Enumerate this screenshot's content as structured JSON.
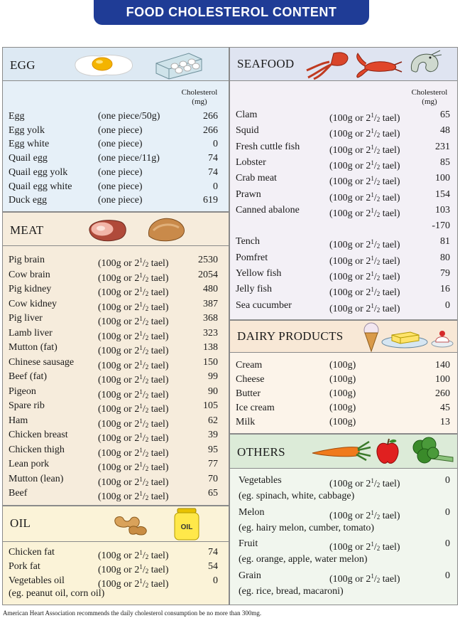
{
  "title": "FOOD CHOLESTEROL CONTENT",
  "column_header": {
    "line1": "Cholesterol",
    "line2": "(mg)"
  },
  "amount_100g": "(100g or 2",
  "amount_100g_frac": "1",
  "amount_100g_den": "2",
  "amount_100g_tail": " tael)",
  "egg": {
    "title": "EGG",
    "icons": [
      "fried-egg-icon",
      "egg-carton-icon"
    ],
    "items": [
      {
        "name": "Egg",
        "amount": "(one piece/50g)",
        "value": "266"
      },
      {
        "name": "Egg yolk",
        "amount": "(one piece)",
        "value": "266"
      },
      {
        "name": "Egg white",
        "amount": "(one piece)",
        "value": "0"
      },
      {
        "name": "Quail egg",
        "amount": "(one piece/11g)",
        "value": "74"
      },
      {
        "name": "Quail egg yolk",
        "amount": "(one piece)",
        "value": "74"
      },
      {
        "name": "Quail egg white",
        "amount": "(one piece)",
        "value": "0"
      },
      {
        "name": "Duck egg",
        "amount": "(one piece)",
        "value": "619"
      }
    ]
  },
  "meat": {
    "title": "MEAT",
    "icons": [
      "ham-icon",
      "chicken-leg-icon"
    ],
    "items": [
      {
        "name": "Pig brain",
        "value": "2530"
      },
      {
        "name": "Cow brain",
        "value": "2054"
      },
      {
        "name": "Pig kidney",
        "value": "480"
      },
      {
        "name": "Cow kidney",
        "value": "387"
      },
      {
        "name": "Pig liver",
        "value": "368"
      },
      {
        "name": "Lamb liver",
        "value": "323"
      },
      {
        "name": "Mutton (fat)",
        "value": "138"
      },
      {
        "name": "Chinese sausage",
        "value": "150"
      },
      {
        "name": "Beef (fat)",
        "value": "99"
      },
      {
        "name": "Pigeon",
        "value": "90"
      },
      {
        "name": "Spare rib",
        "value": "105"
      },
      {
        "name": "Ham",
        "value": "62"
      },
      {
        "name": "Chicken breast",
        "value": "39"
      },
      {
        "name": "Chicken thigh",
        "value": "95"
      },
      {
        "name": "Lean pork",
        "value": "77"
      },
      {
        "name": "Mutton (lean)",
        "value": "70"
      },
      {
        "name": "Beef",
        "value": "65"
      }
    ]
  },
  "oil": {
    "title": "OIL",
    "icons": [
      "peanuts-icon",
      "oil-bottle-icon"
    ],
    "jar_label": "OIL",
    "items": [
      {
        "name": "Chicken fat",
        "value": "74"
      },
      {
        "name": "Pork fat",
        "value": "54"
      },
      {
        "name": "Vegetables oil",
        "value": "0"
      }
    ],
    "note": "(eg. peanut oil, corn oil)"
  },
  "seafood": {
    "title": "SEAFOOD",
    "icons": [
      "squid-icon",
      "lobster-icon",
      "shrimp-icon"
    ],
    "items": [
      {
        "name": "Clam",
        "value": "65"
      },
      {
        "name": "Squid",
        "value": "48"
      },
      {
        "name": "Fresh cuttle fish",
        "value": "231"
      },
      {
        "name": "Lobster",
        "value": "85"
      },
      {
        "name": "Crab meat",
        "value": "100"
      },
      {
        "name": "Prawn",
        "value": "154"
      },
      {
        "name": "Canned abalone",
        "value": "103"
      },
      {
        "name": "",
        "value": "-170"
      },
      {
        "name": "Tench",
        "value": "81"
      },
      {
        "name": "Pomfret",
        "value": "80"
      },
      {
        "name": "Yellow fish",
        "value": "79"
      },
      {
        "name": "Jelly fish",
        "value": "16"
      },
      {
        "name": "Sea cucumber",
        "value": "0"
      }
    ]
  },
  "dairy": {
    "title": "DAIRY PRODUCTS",
    "icons": [
      "ice-cream-cone-icon",
      "butter-dish-icon",
      "dessert-icon"
    ],
    "items": [
      {
        "name": "Cream",
        "amount": "(100g)",
        "value": "140"
      },
      {
        "name": "Cheese",
        "amount": "(100g)",
        "value": "100"
      },
      {
        "name": "Butter",
        "amount": "(100g)",
        "value": "260"
      },
      {
        "name": "Ice cream",
        "amount": "(100g)",
        "value": "45"
      },
      {
        "name": "Milk",
        "amount": "(100g)",
        "value": "13"
      }
    ]
  },
  "others": {
    "title": "OTHERS",
    "icons": [
      "carrot-icon",
      "apple-icon",
      "broccoli-icon"
    ],
    "items": [
      {
        "name": "Vegetables",
        "value": "0",
        "note": "(eg. spinach, white, cabbage)"
      },
      {
        "name": "Melon",
        "value": "0",
        "note": "(eg. hairy melon, cumber, tomato)"
      },
      {
        "name": "Fruit",
        "value": "0",
        "note": "(eg. orange, apple, water melon)"
      },
      {
        "name": "Grain",
        "value": "0",
        "note": "(eg. rice, bread, macaroni)"
      }
    ]
  },
  "colors": {
    "banner": "#1f3c96",
    "egg_head": "#dde9f3",
    "egg_body": "#e6f0f8",
    "meat": "#f6ecdc",
    "oil": "#fbf3d8",
    "seafood_head": "#dfe4f1",
    "seafood_body": "#f3f0f6",
    "dairy_head": "#f8e8d6",
    "dairy_body": "#fcf4ea",
    "others_head": "#dcebd8",
    "others_body": "#f1f6ee"
  },
  "footer": "American Heart Association recommends the daily cholesterol consumption be no more than 300mg."
}
